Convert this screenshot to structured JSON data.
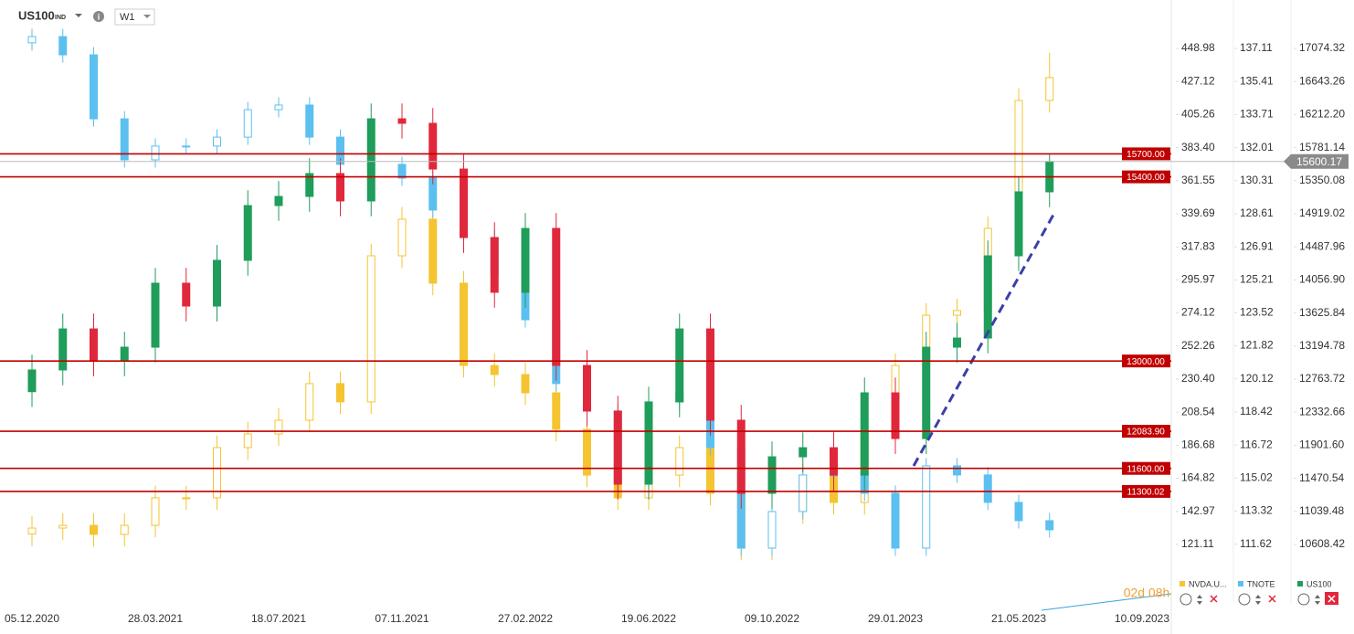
{
  "header": {
    "symbol": "US100",
    "market": "IND",
    "interval": "W1",
    "countdown": "02d 08h"
  },
  "chart_data": {
    "type": "candlestick",
    "categories": [
      "05.12.2020",
      null,
      null,
      null,
      "28.03.2021",
      null,
      null,
      null,
      "18.07.2021",
      null,
      null,
      null,
      "07.11.2021",
      null,
      null,
      null,
      "27.02.2022",
      null,
      null,
      null,
      "19.06.2022",
      null,
      null,
      null,
      "09.10.2022",
      null,
      null,
      null,
      "29.01.2023",
      null,
      null,
      null,
      "21.05.2023",
      null,
      null,
      null,
      "10.09.2023"
    ],
    "series": [
      {
        "name": "NVDA.U...",
        "color": "#f5c431",
        "ylim": [
          82.4,
          481.0
        ],
        "yticks": [
          448.98,
          427.12,
          405.26,
          {
            "value": 383.4,
            "label": "383.40"
          },
          361.55,
          339.69,
          317.83,
          295.97,
          274.12,
          252.26,
          {
            "value": 230.4,
            "label": "230.40"
          },
          208.54,
          186.68,
          164.82,
          142.97,
          121.11
        ],
        "open": [
          128.0,
          131.9,
          133.7,
          127.7,
          133.7,
          151.9,
          151.9,
          185.1,
          194.1,
          203.2,
          227.4,
          215.3,
          311.9,
          336.1,
          293.8,
          239.4,
          233.4,
          221.3,
          197.2,
          166.9,
          151.9,
          166.9,
          185.1,
          154.9,
          118.6,
          142.8,
          166.9,
          148.8,
          197.2,
          239.4,
          272.6,
          275.7,
          330.0,
          414.6
        ],
        "high": [
          139.9,
          141.7,
          141.7,
          141.7,
          159.9,
          159.9,
          193.1,
          202.1,
          211.2,
          235.4,
          235.4,
          319.9,
          344.1,
          344.1,
          301.8,
          247.4,
          241.4,
          229.3,
          205.2,
          174.9,
          174.9,
          193.1,
          193.1,
          162.9,
          150.8,
          174.9,
          174.9,
          205.2,
          247.4,
          280.6,
          283.7,
          338.0,
          422.6,
          446.0
        ],
        "low": [
          120.0,
          123.9,
          119.7,
          119.7,
          125.7,
          143.9,
          143.9,
          177.1,
          186.1,
          195.2,
          207.3,
          207.3,
          303.9,
          285.8,
          231.4,
          225.4,
          213.3,
          189.2,
          158.9,
          143.9,
          143.9,
          158.9,
          146.9,
          110.6,
          110.6,
          134.8,
          140.8,
          140.8,
          189.2,
          231.4,
          264.6,
          267.7,
          322.0,
          406.6
        ],
        "close": [
          131.9,
          133.7,
          127.7,
          133.7,
          151.9,
          151.9,
          185.1,
          194.1,
          203.2,
          227.4,
          215.3,
          311.9,
          336.1,
          293.8,
          239.4,
          233.4,
          221.3,
          197.2,
          166.9,
          151.9,
          166.9,
          185.1,
          154.9,
          118.6,
          142.8,
          166.9,
          148.8,
          197.2,
          239.4,
          272.6,
          275.7,
          330.0,
          414.6,
          429.7
        ]
      },
      {
        "name": "TNOTE",
        "color": "#5bc0f0",
        "ylim": [
          108.6,
          139.6
        ],
        "yticks": [
          137.11,
          135.41,
          133.71,
          132.01,
          130.31,
          128.61,
          126.91,
          125.21,
          123.52,
          121.82,
          120.12,
          118.42,
          116.72,
          115.02,
          113.32,
          111.62
        ],
        "open": [
          137.4,
          137.72,
          136.78,
          133.49,
          131.38,
          132.09,
          132.09,
          132.55,
          133.96,
          134.2,
          132.55,
          131.15,
          131.15,
          130.44,
          128.8,
          127.39,
          125.51,
          123.16,
          119.88,
          118.47,
          114.71,
          118.94,
          119.41,
          116.59,
          111.42,
          113.3,
          115.18,
          115.18,
          114.24,
          111.42,
          115.65,
          115.18,
          113.77,
          112.83
        ],
        "high": [
          138.12,
          138.12,
          137.18,
          133.89,
          132.49,
          132.49,
          132.95,
          134.36,
          134.6,
          134.6,
          132.95,
          131.55,
          131.55,
          130.84,
          129.2,
          127.79,
          125.91,
          123.56,
          120.28,
          118.87,
          119.34,
          119.81,
          119.81,
          116.99,
          113.7,
          115.58,
          115.58,
          115.58,
          114.64,
          116.05,
          116.05,
          115.58,
          114.17,
          113.23
        ],
        "low": [
          137.0,
          136.38,
          133.09,
          130.98,
          130.98,
          131.69,
          131.69,
          132.15,
          133.56,
          132.15,
          130.75,
          130.75,
          130.04,
          128.4,
          126.99,
          125.11,
          122.76,
          119.48,
          118.07,
          114.31,
          114.31,
          118.54,
          116.19,
          111.02,
          111.02,
          112.9,
          114.78,
          113.84,
          111.02,
          111.02,
          114.78,
          113.37,
          112.43,
          111.96
        ],
        "close": [
          137.72,
          136.78,
          133.49,
          131.38,
          132.09,
          132.09,
          132.55,
          133.96,
          134.2,
          132.55,
          131.15,
          131.15,
          130.44,
          128.8,
          127.39,
          125.51,
          123.16,
          119.88,
          118.47,
          114.71,
          118.94,
          119.41,
          116.59,
          111.42,
          113.3,
          115.18,
          115.18,
          114.24,
          111.42,
          115.65,
          115.18,
          113.77,
          112.83,
          112.36
        ]
      },
      {
        "name": "US100",
        "color": "#1f9d5a",
        "down_color": "#e0283c",
        "ylim": [
          9846.2,
          17705.4
        ],
        "yticks": [
          17074.32,
          16643.26,
          {
            "value": 16212.2,
            "label": "16212.20"
          },
          15781.14,
          15350.08,
          14919.02,
          14487.96,
          {
            "value": 14056.9,
            "label": "14056.90"
          },
          13625.84,
          13194.78,
          12763.72,
          12332.66,
          {
            "value": 11901.6,
            "label": "11901.60"
          },
          11470.54,
          11039.48,
          10608.42
        ],
        "open": [
          12600,
          12883,
          13418,
          13001,
          13180,
          14014,
          13716,
          14312,
          15026,
          15145,
          15443,
          15086,
          16157,
          16098,
          15502,
          14609,
          13895,
          14728,
          12942,
          12347,
          11394,
          12466,
          13418,
          12228,
          11275,
          11751,
          11870,
          11513,
          12585,
          11989,
          13180,
          13299,
          14371,
          15205
        ],
        "high": [
          13083,
          13618,
          13618,
          13380,
          14214,
          14214,
          14512,
          15226,
          15345,
          15643,
          15643,
          16357,
          16357,
          16298,
          15702,
          14809,
          14928,
          14928,
          13142,
          12547,
          12666,
          13618,
          13618,
          12428,
          11951,
          12070,
          12070,
          12785,
          12785,
          13380,
          13499,
          14571,
          15405,
          15700
        ],
        "low": [
          12400,
          12683,
          12801,
          12801,
          12980,
          13516,
          13516,
          14112,
          14826,
          14945,
          14886,
          14886,
          15898,
          15302,
          14409,
          13695,
          13695,
          12742,
          12147,
          11194,
          11194,
          12266,
          12028,
          11075,
          11075,
          11551,
          11313,
          11313,
          11789,
          11789,
          12980,
          13099,
          14171,
          15005
        ],
        "close": [
          12883,
          13418,
          13001,
          13180,
          14014,
          13716,
          14312,
          15026,
          15145,
          15443,
          15086,
          16157,
          16098,
          15502,
          14609,
          13895,
          14728,
          12942,
          12347,
          11394,
          12466,
          13418,
          12228,
          11275,
          11751,
          11870,
          11513,
          12585,
          11989,
          13180,
          13299,
          14371,
          15205,
          15600.17
        ]
      }
    ],
    "levels": [
      {
        "value": 15700,
        "label": "15700.00"
      },
      {
        "value": 15400,
        "label": "15400.00"
      },
      {
        "value": 13000,
        "label": "13000.00"
      },
      {
        "value": 12083.9,
        "label": "12083.90"
      },
      {
        "value": 11600,
        "label": "11600.00"
      },
      {
        "value": 11300.02,
        "label": "11300.02"
      }
    ],
    "level_color": "#c00000"
  }
}
